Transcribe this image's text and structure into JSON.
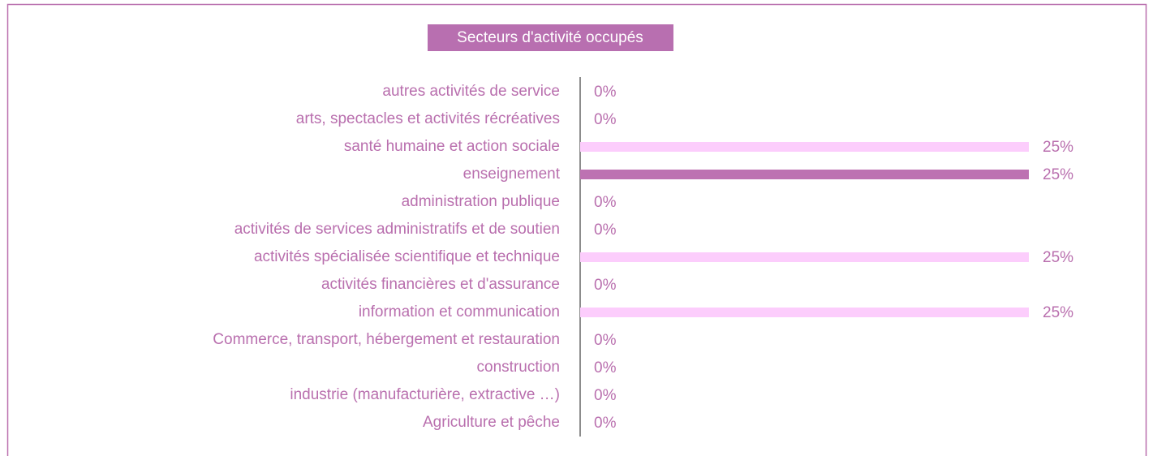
{
  "chart_data": {
    "type": "bar",
    "orientation": "horizontal",
    "title": "Secteurs d'activité occupés",
    "categories": [
      "autres activités de service",
      "arts, spectacles et activités récréatives",
      "santé humaine et action sociale",
      "enseignement",
      "administration publique",
      "activités de services administratifs et de soutien",
      "activités spécialisée scientifique et technique",
      "activités financières et d'assurance",
      "information et communication",
      "Commerce, transport, hébergement et restauration",
      "construction",
      "industrie (manufacturière, extractive …)",
      "Agriculture et pêche"
    ],
    "values": [
      0,
      0,
      25,
      25,
      0,
      0,
      25,
      0,
      25,
      0,
      0,
      0,
      0
    ],
    "value_labels": [
      "0%",
      "0%",
      "25%",
      "25%",
      "0%",
      "0%",
      "25%",
      "0%",
      "25%",
      "0%",
      "0%",
      "0%",
      "0%"
    ],
    "colors": [
      "#fccdfc",
      "#fccdfc",
      "#fccdfc",
      "#bd72b2",
      "#fccdfc",
      "#fccdfc",
      "#fccdfc",
      "#fccdfc",
      "#fccdfc",
      "#fccdfc",
      "#fccdfc",
      "#fccdfc",
      "#fccdfc"
    ],
    "xlim": [
      0,
      25
    ]
  }
}
